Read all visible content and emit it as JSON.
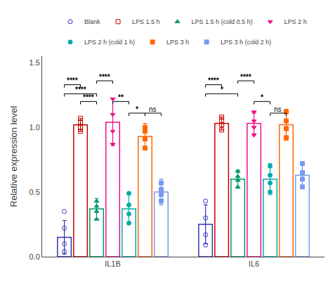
{
  "chart_data": {
    "type": "bar",
    "ylabel": "Relative expression level",
    "categories": [
      "IL1B",
      "IL6"
    ],
    "ylim": [
      0,
      1.55
    ],
    "yticks": [
      {
        "value": 0,
        "label": "0.0"
      },
      0.5,
      {
        "value": 1,
        "label": "1.0"
      },
      1.5
    ],
    "grid": false,
    "series": [
      {
        "name": "Blank",
        "color": "#3333bb",
        "marker": "circle-open",
        "values": [
          0.15,
          0.25
        ],
        "errors": [
          0.13,
          0.15
        ],
        "points": [
          [
            0.04,
            0.1,
            0.22,
            0.35
          ],
          [
            0.09,
            0.17,
            0.3,
            0.43
          ]
        ]
      },
      {
        "name": "LPS 1.5 h",
        "color": "#cc0000",
        "marker": "square-open",
        "values": [
          1.02,
          1.03
        ],
        "errors": [
          0.05,
          0.05
        ],
        "points": [
          [
            0.97,
            1.0,
            1.04,
            1.07
          ],
          [
            0.98,
            1.02,
            1.05,
            1.08
          ]
        ]
      },
      {
        "name": "LPS 1.5 h (cold 0.5 h)",
        "color": "#009966",
        "marker": "triangle-up",
        "values": [
          0.37,
          0.6
        ],
        "errors": [
          0.08,
          0.07
        ],
        "points": [
          [
            0.29,
            0.35,
            0.39,
            0.43
          ],
          [
            0.54,
            0.59,
            0.62,
            0.66
          ]
        ]
      },
      {
        "name": "LPS 2 h",
        "color": "#ee1188",
        "marker": "triangle-down",
        "values": [
          1.04,
          1.03
        ],
        "errors": [
          0.18,
          0.08
        ],
        "points": [
          [
            0.87,
            0.97,
            1.1,
            1.22
          ],
          [
            0.94,
            1.0,
            1.05,
            1.12
          ]
        ]
      },
      {
        "name": "LPS 2 h (cold 1 h)",
        "color": "#00aaaa",
        "marker": "circle",
        "values": [
          0.37,
          0.6
        ],
        "errors": [
          0.12,
          0.12
        ],
        "points": [
          [
            0.26,
            0.33,
            0.4,
            0.49
          ],
          [
            0.5,
            0.57,
            0.63,
            0.7
          ]
        ]
      },
      {
        "name": "LPS 3 h",
        "color": "#ff6600",
        "marker": "square",
        "values": [
          0.93,
          1.02
        ],
        "errors": [
          0.1,
          0.12
        ],
        "points": [
          [
            0.84,
            0.91,
            0.97,
            1.0
          ],
          [
            0.92,
            0.99,
            1.05,
            1.12
          ]
        ]
      },
      {
        "name": "LPS 3 h (cold 2 h)",
        "color": "#7799ee",
        "marker": "square",
        "values": [
          0.5,
          0.63
        ],
        "errors": [
          0.1,
          0.1
        ],
        "points": [
          [
            0.43,
            0.48,
            0.52,
            0.57
          ],
          [
            0.54,
            0.6,
            0.65,
            0.72
          ]
        ]
      }
    ],
    "annotations": [
      {
        "category": "IL1B",
        "from": "Blank",
        "to": "LPS 1.5 h",
        "text": "****",
        "y": 1.33
      },
      {
        "category": "IL1B",
        "from": "Blank",
        "to": "LPS 1.5 h (cold 0.5 h)",
        "text": "****",
        "y": 1.26
      },
      {
        "category": "IL1B",
        "from": "LPS 1.5 h",
        "to": "LPS 1.5 h (cold 0.5 h)",
        "text": "****",
        "y": 1.2
      },
      {
        "category": "IL1B",
        "from": "LPS 1.5 h (cold 0.5 h)",
        "to": "LPS 2 h",
        "text": "****",
        "y": 1.36
      },
      {
        "category": "IL1B",
        "from": "LPS 2 h",
        "to": "LPS 2 h (cold 1 h)",
        "text": "**",
        "y": 1.2
      },
      {
        "category": "IL1B",
        "from": "LPS 2 h (cold 1 h)",
        "to": "LPS 3 h",
        "text": "*",
        "y": 1.11
      },
      {
        "category": "IL1B",
        "from": "LPS 3 h",
        "to": "LPS 3 h (cold 2 h)",
        "text": "ns",
        "y": 1.11
      },
      {
        "category": "IL6",
        "from": "Blank",
        "to": "LPS 1.5 h",
        "text": "****",
        "y": 1.33
      },
      {
        "category": "IL6",
        "from": "Blank",
        "to": "LPS 1.5 h (cold 0.5 h)",
        "text": "*",
        "y": 1.26
      },
      {
        "category": "IL6",
        "from": "LPS 1.5 h (cold 0.5 h)",
        "to": "LPS 2 h",
        "text": "****",
        "y": 1.36
      },
      {
        "category": "IL6",
        "from": "LPS 2 h",
        "to": "LPS 2 h (cold 1 h)",
        "text": "*",
        "y": 1.2
      },
      {
        "category": "IL6",
        "from": "LPS 2 h (cold 1 h)",
        "to": "LPS 3 h",
        "text": "ns",
        "y": 1.11
      }
    ]
  }
}
